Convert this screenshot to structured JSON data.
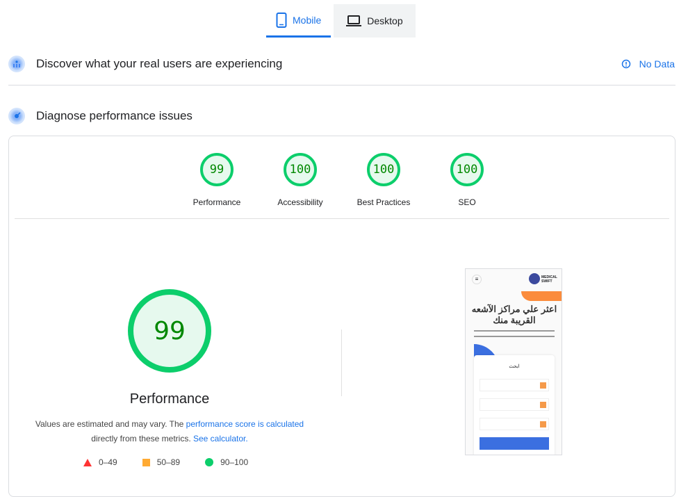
{
  "tabs": [
    {
      "label": "Mobile",
      "icon": "smartphone-icon",
      "active": true
    },
    {
      "label": "Desktop",
      "icon": "laptop-icon",
      "active": false
    }
  ],
  "field_data": {
    "title": "Discover what your real users are experiencing",
    "status": "No Data",
    "status_icon": "info-icon"
  },
  "lab": {
    "title": "Diagnose performance issues"
  },
  "scores": [
    {
      "label": "Performance",
      "value": "99"
    },
    {
      "label": "Accessibility",
      "value": "100"
    },
    {
      "label": "Best Practices",
      "value": "100"
    },
    {
      "label": "SEO",
      "value": "100"
    }
  ],
  "main": {
    "score": "99",
    "title": "Performance",
    "note_pre": "Values are estimated and may vary. The ",
    "note_link1": "performance score is calculated",
    "note_mid": " directly from these metrics. ",
    "note_link2": "See calculator."
  },
  "legend": [
    {
      "range": "0–49",
      "color": "#ff3333"
    },
    {
      "range": "50–89",
      "color": "#ffaa33"
    },
    {
      "range": "90–100",
      "color": "#0cce6b"
    }
  ],
  "colors": {
    "accent": "#1a73e8",
    "good": "#0cce6b"
  },
  "screenshot": {
    "logo": "MEDICAL SWIFT",
    "heading": "اعثر علي مراكز الآشعه القريبة منك",
    "form_title": "ابحث"
  }
}
